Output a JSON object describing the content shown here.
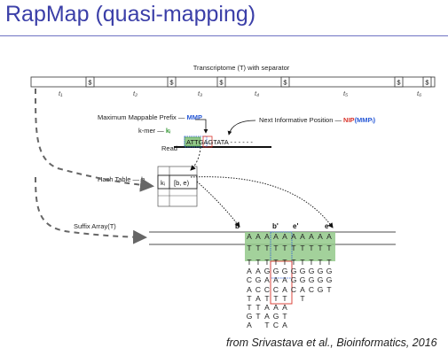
{
  "title": "RapMap (quasi-mapping)",
  "citation": "from Srivastava et al., Bioinformatics, 2016",
  "diagram": {
    "transcriptome_label": "Transcriptome (T) with separator",
    "separator": "$",
    "transcripts": [
      "t₁",
      "t₂",
      "t₃",
      "t₄",
      "t₅",
      "t₆"
    ],
    "mmp_label": "Maximum Mappable Prefix",
    "mmp_abbr": "MMP",
    "kmer_label": "k-mer",
    "kmer_abbr": "kᵢ",
    "nip_label": "Next Informative Position",
    "nip_abbr": "NIP",
    "nip_arg": "(MMPᵢ)",
    "read_label": "Read",
    "read_seq": "ATTGAGTATA - - - - - -",
    "hash_label": "Hash Table",
    "hash_abbr": "h",
    "hash_key": "kᵢ",
    "hash_value": "[b, e)",
    "sa_label": "Suffix Array(T)",
    "interval_labels": [
      "b",
      "b'",
      "e'",
      "e"
    ],
    "sa_columns": [
      [
        "A",
        "T",
        "T",
        "A",
        "C",
        "A",
        "T",
        "T",
        "G",
        "A"
      ],
      [
        "A",
        "T",
        "T",
        "A",
        "G",
        "C",
        "A",
        "T",
        "T",
        ""
      ],
      [
        "A",
        "T",
        "T",
        "G",
        "A",
        "C",
        "T",
        "A",
        "A",
        "T"
      ],
      [
        "A",
        "T",
        "T",
        "G",
        "A",
        "C",
        "T",
        "A",
        "G",
        "C"
      ],
      [
        "A",
        "T",
        "T",
        "G",
        "A",
        "A",
        "T",
        "A",
        "T",
        "A"
      ],
      [
        "A",
        "T",
        "T",
        "G",
        "G",
        "C",
        "",
        "",
        "",
        ""
      ],
      [
        "A",
        "T",
        "T",
        "G",
        "G",
        "A",
        "T",
        "",
        "",
        ""
      ],
      [
        "A",
        "T",
        "T",
        "G",
        "G",
        "C",
        "",
        "",
        "",
        ""
      ],
      [
        "A",
        "T",
        "T",
        "G",
        "G",
        "G",
        "",
        "",
        "",
        ""
      ],
      [
        "A",
        "T",
        "T",
        "G",
        "G",
        "T",
        "",
        "",
        "",
        ""
      ]
    ],
    "colors": {
      "mmp": "#2a5bd7",
      "nip": "#d8332a",
      "kmer": "#3a9a3a",
      "highlight": "#93c98a"
    }
  }
}
